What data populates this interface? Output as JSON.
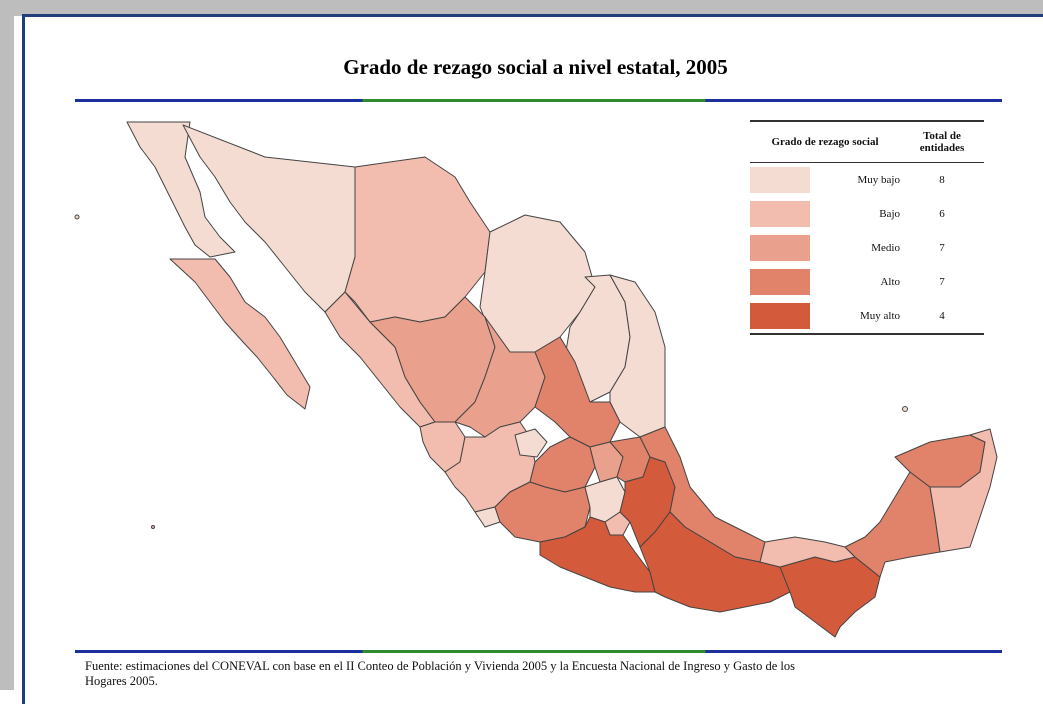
{
  "title": "Grado de rezago social a nivel estatal, 2005",
  "legend": {
    "header_category": "Grado de rezago social",
    "header_count_line1": "Total de",
    "header_count_line2": "entidades",
    "items": [
      {
        "label": "Muy bajo",
        "count": "8",
        "color": "#f5dcd2"
      },
      {
        "label": "Bajo",
        "count": "6",
        "color": "#f2bcae"
      },
      {
        "label": "Medio",
        "count": "7",
        "color": "#e9a08d"
      },
      {
        "label": "Alto",
        "count": "7",
        "color": "#e1826b"
      },
      {
        "label": "Muy alto",
        "count": "4",
        "color": "#d45a3c"
      }
    ]
  },
  "source_line1": "Fuente: estimaciones del CONEVAL con base en el II Conteo de Población y Vivienda 2005 y la Encuesta Nacional de Ingreso y Gasto de los",
  "source_line2": "Hogares 2005."
}
